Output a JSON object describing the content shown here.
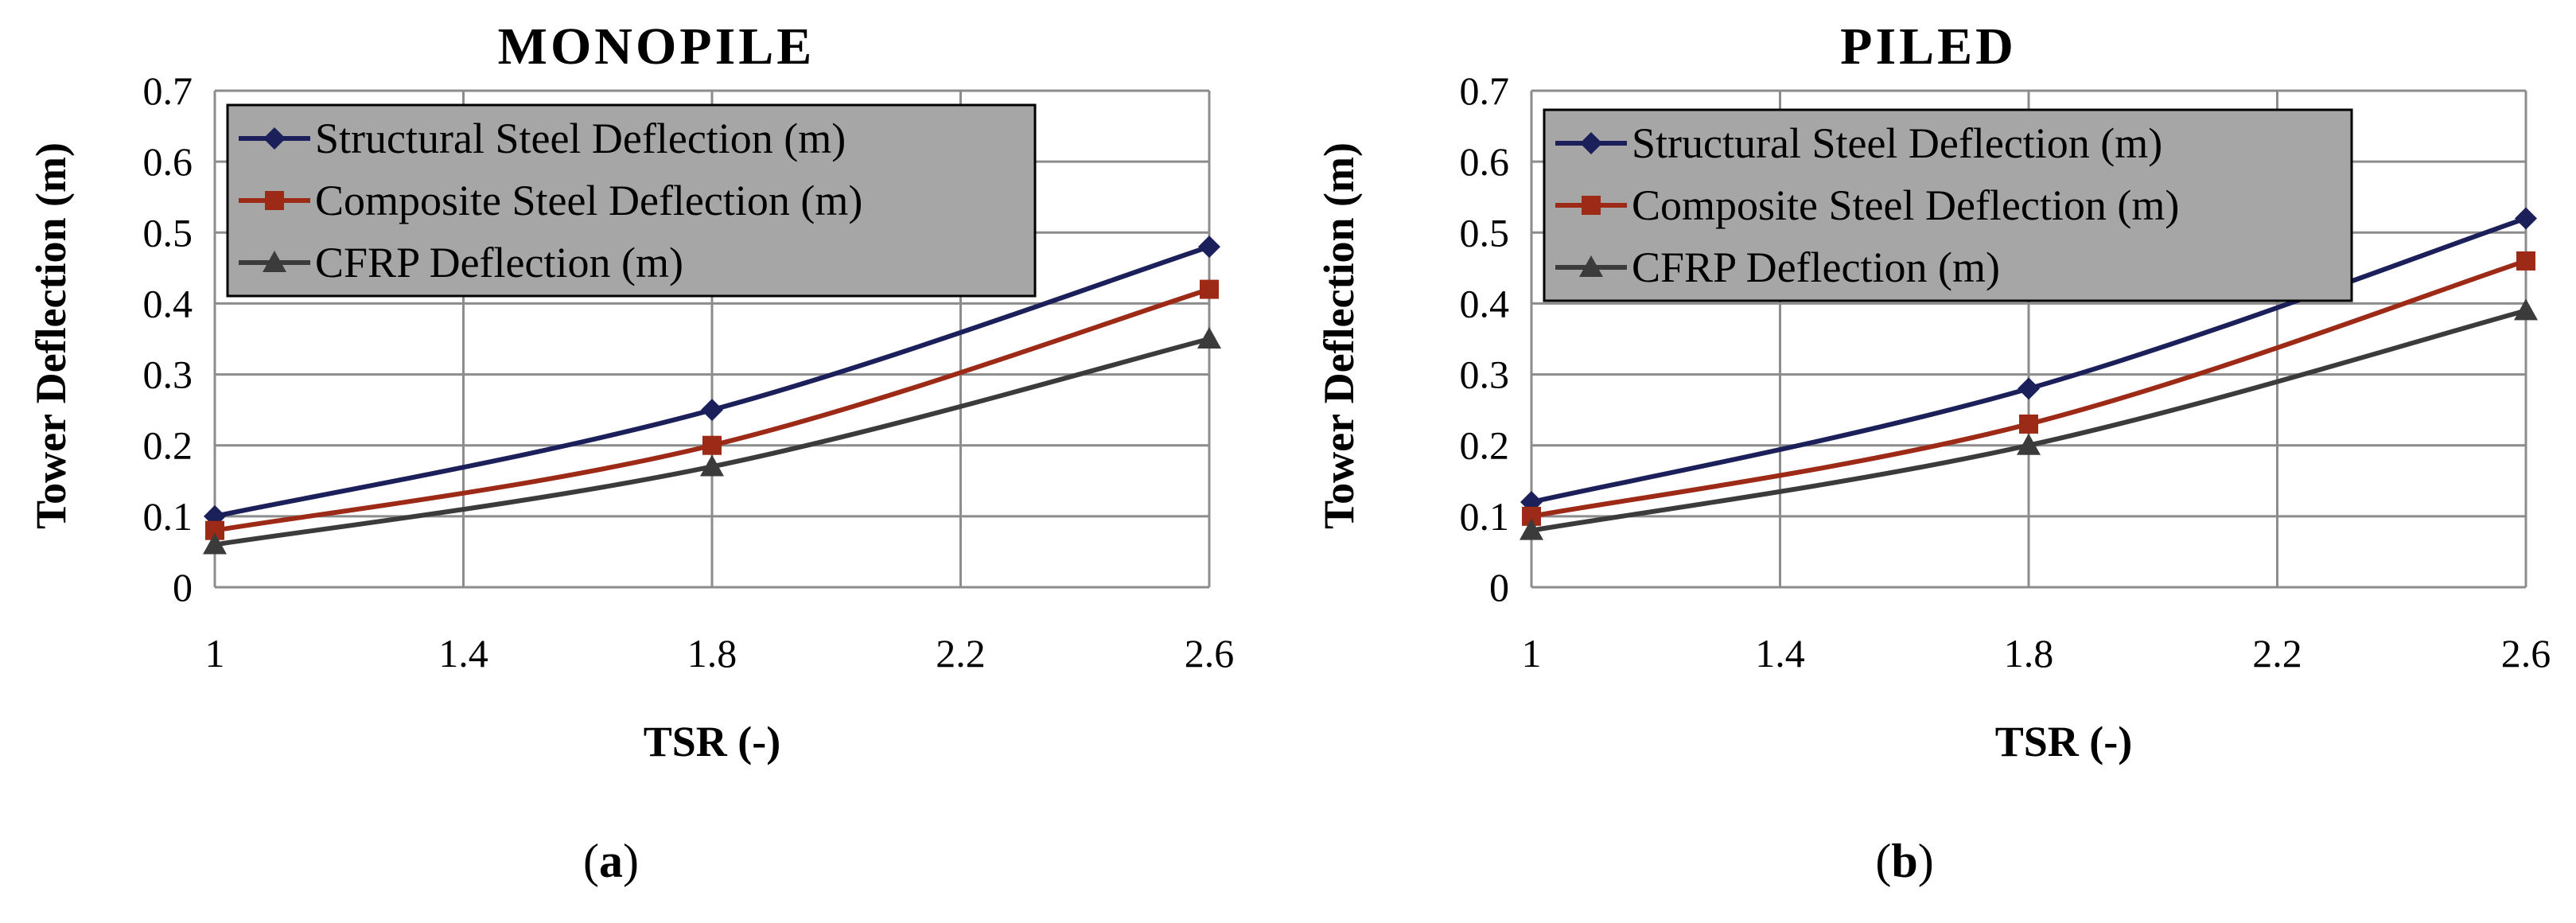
{
  "chart_data": [
    {
      "type": "line",
      "title": "MONOPILE",
      "xlabel": "TSR (-)",
      "ylabel": "Tower Deflection (m)",
      "caption": {
        "open": "(",
        "letter": "a",
        "close": ")"
      },
      "x": [
        1,
        1.8,
        2.6
      ],
      "xlim": [
        1,
        2.6
      ],
      "xticks": [
        "1",
        "1.4",
        "1.8",
        "2.2",
        "2.6"
      ],
      "ylim": [
        0,
        0.7
      ],
      "yticks": [
        "0",
        "0.1",
        "0.2",
        "0.3",
        "0.4",
        "0.5",
        "0.6",
        "0.7"
      ],
      "grid": true,
      "legend_position": "top-left",
      "series": [
        {
          "name": "Structural Steel Deflection (m)",
          "values": [
            0.1,
            0.25,
            0.48
          ],
          "color": "#1b1f5a",
          "marker": "diamond"
        },
        {
          "name": "Composite Steel Deflection (m)",
          "values": [
            0.08,
            0.2,
            0.42
          ],
          "color": "#9c2a16",
          "marker": "square"
        },
        {
          "name": "CFRP Deflection (m)",
          "values": [
            0.06,
            0.17,
            0.35
          ],
          "color": "#3b3b3b",
          "marker": "triangle"
        }
      ]
    },
    {
      "type": "line",
      "title": "PILED",
      "xlabel": "TSR (-)",
      "ylabel": "Tower Deflection (m)",
      "caption": {
        "open": "(",
        "letter": "b",
        "close": ")"
      },
      "x": [
        1,
        1.8,
        2.6
      ],
      "xlim": [
        1,
        2.6
      ],
      "xticks": [
        "1",
        "1.4",
        "1.8",
        "2.2",
        "2.6"
      ],
      "ylim": [
        0,
        0.7
      ],
      "yticks": [
        "0",
        "0.1",
        "0.2",
        "0.3",
        "0.4",
        "0.5",
        "0.6",
        "0.7"
      ],
      "grid": true,
      "legend_position": "top-left",
      "series": [
        {
          "name": "Structural Steel Deflection (m)",
          "values": [
            0.12,
            0.28,
            0.52
          ],
          "color": "#1b1f5a",
          "marker": "diamond"
        },
        {
          "name": "Composite Steel Deflection (m)",
          "values": [
            0.1,
            0.23,
            0.46
          ],
          "color": "#9c2a16",
          "marker": "square"
        },
        {
          "name": "CFRP Deflection (m)",
          "values": [
            0.08,
            0.2,
            0.39
          ],
          "color": "#3b3b3b",
          "marker": "triangle"
        }
      ]
    }
  ],
  "styles": {
    "grid_color": "#8c8c8c",
    "legend_fill": "#a6a6a6",
    "legend_border": "#000000"
  }
}
